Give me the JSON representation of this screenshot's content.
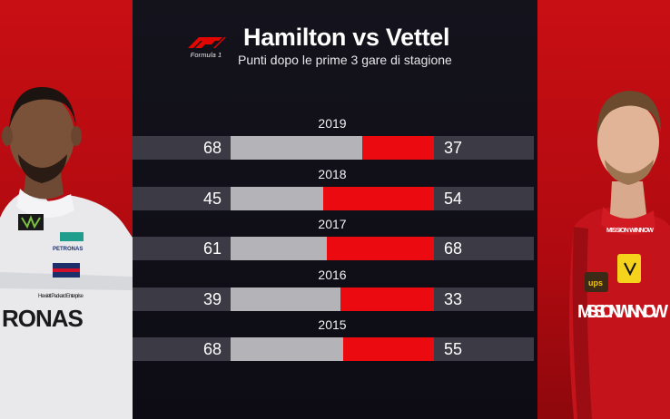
{
  "header": {
    "title": "Hamilton vs Vettel",
    "subtitle": "Punti dopo le prime 3 gare di stagione",
    "logo_text": "Formula 1"
  },
  "drivers": {
    "left": {
      "suit_text": "RONAS",
      "badge_text": "PETRONAS",
      "sponsor_text": "Hewlett Packard Enterprise",
      "logo_text": "TOMMY HILFIGER"
    },
    "right": {
      "suit_text": "MISSION WINNOW",
      "chest_text": "MISSION WINNOW",
      "sponsor_text": "ups"
    }
  },
  "colors": {
    "hamilton": "#b4b4b8",
    "vettel": "#ea0a10",
    "background": "#0c0b12",
    "row": "#3b3a45",
    "side": "#c80f14"
  },
  "chart_data": {
    "type": "bar",
    "orientation": "horizontal-stacked",
    "title": "Hamilton vs Vettel",
    "subtitle": "Punti dopo le prime 3 gare di stagione",
    "categories": [
      "2019",
      "2018",
      "2017",
      "2016",
      "2015"
    ],
    "series": [
      {
        "values": [
          68,
          45,
          61,
          39,
          68
        ],
        "color": "#b4b4b8"
      },
      {
        "values": [
          37,
          54,
          68,
          33,
          55
        ],
        "color": "#ea0a10"
      }
    ],
    "left_labels": [
      "68",
      "45",
      "61",
      "39",
      "68"
    ],
    "right_labels": [
      "37",
      "54",
      "68",
      "33",
      "55"
    ]
  }
}
